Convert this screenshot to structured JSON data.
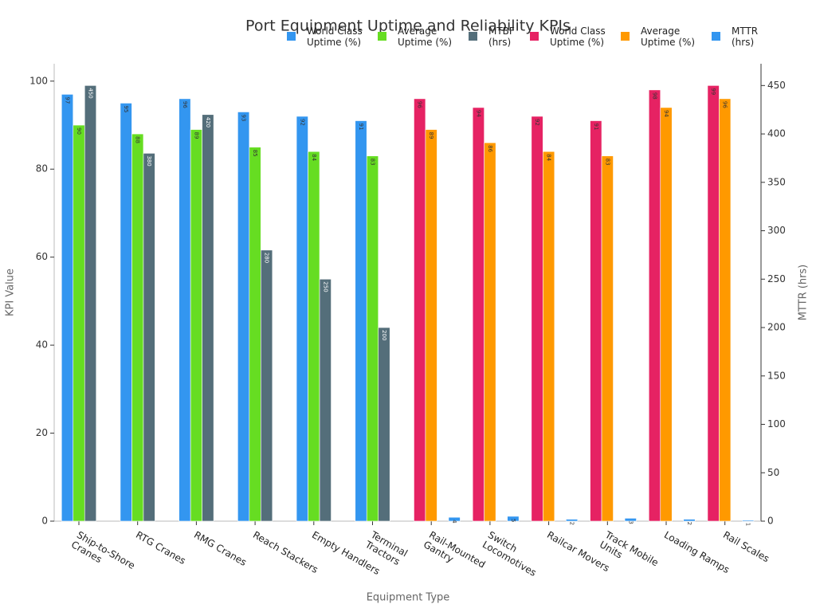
{
  "chart_data": {
    "type": "bar",
    "title": "Port Equipment Uptime and Reliability KPIs",
    "x_label": "Equipment Type",
    "y_label": "KPI Value",
    "y2_label": "MTTR (hrs)",
    "categories": [
      "Ship-to-Shore\nCranes",
      "RTG Cranes",
      "RMG Cranes",
      "Reach Stackers",
      "Empty Handlers",
      "Terminal\nTractors",
      "Rail-Mounted\nGantry",
      "Switch\nLocomotives",
      "Railcar Movers",
      "Track Mobile\nUnits",
      "Loading Ramps",
      "Rail Scales"
    ],
    "series": [
      {
        "name": "World Class\nUptime (%)",
        "color": "#3396f0",
        "values": [
          97,
          95,
          96,
          93,
          92,
          91,
          null,
          null,
          null,
          null,
          null,
          null
        ]
      },
      {
        "name": "Average\nUptime (%)",
        "color": "#66dd22",
        "values": [
          90,
          88,
          89,
          85,
          84,
          83,
          null,
          null,
          null,
          null,
          null,
          null
        ]
      },
      {
        "name": "MTBF\n(hrs)",
        "color": "#546e7a",
        "axis": "y2",
        "values": [
          450,
          380,
          420,
          280,
          250,
          200,
          null,
          null,
          null,
          null,
          null,
          null
        ]
      },
      {
        "name": "World Class\nUptime (%)",
        "color": "#e62263",
        "values": [
          null,
          null,
          null,
          null,
          null,
          null,
          96,
          94,
          92,
          91,
          98,
          99
        ]
      },
      {
        "name": "Average\nUptime (%)",
        "color": "#ff9900",
        "values": [
          null,
          null,
          null,
          null,
          null,
          null,
          89,
          86,
          84,
          83,
          94,
          96
        ]
      },
      {
        "name": "MTTR\n(hrs)",
        "color": "#3396f0",
        "axis": "y2",
        "values": [
          null,
          null,
          null,
          null,
          null,
          null,
          4,
          5,
          2,
          3,
          2,
          1
        ]
      }
    ],
    "ylim": [
      0,
      103.95
    ],
    "yticks": [
      0,
      20,
      40,
      60,
      80,
      100
    ],
    "y2lim": [
      0,
      472.5
    ],
    "y2ticks": [
      0,
      50,
      100,
      150,
      200,
      250,
      300,
      350,
      400,
      450
    ],
    "grid": false
  }
}
